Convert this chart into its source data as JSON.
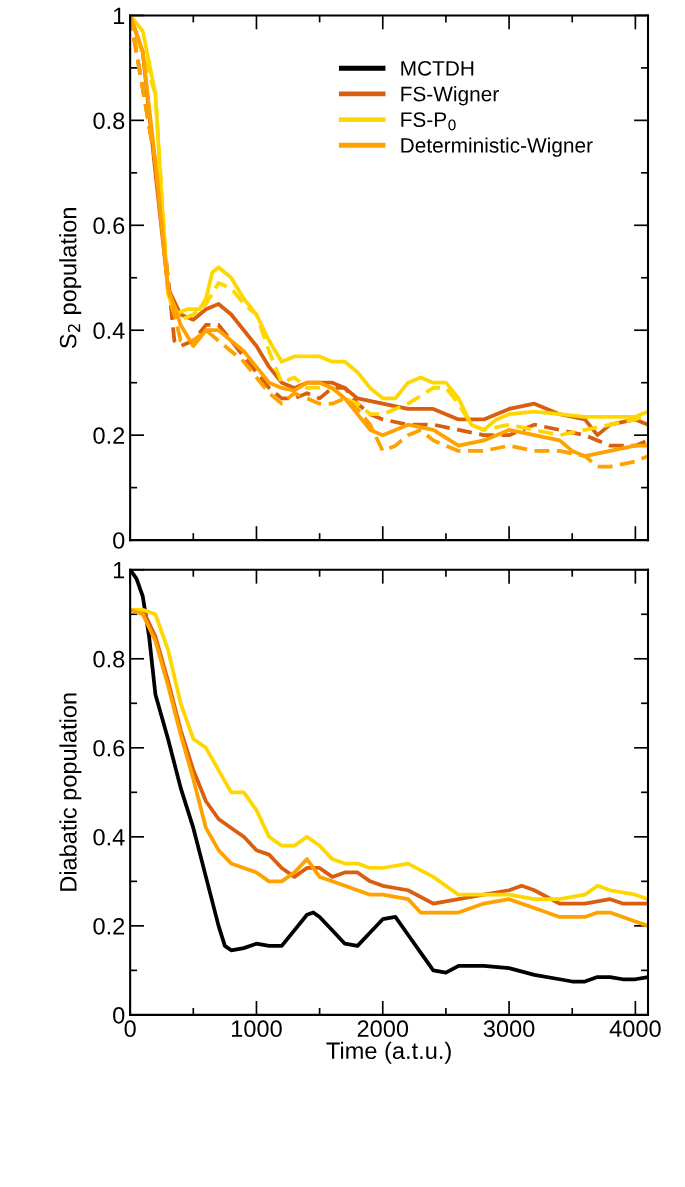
{
  "chart_data": [
    {
      "type": "line",
      "ylabel": "S$_{2}$ population",
      "xlim": [
        0,
        4100
      ],
      "xticks": [
        0,
        1000,
        2000,
        3000,
        4000
      ],
      "ylim": [
        0,
        1
      ],
      "yticks": [
        0,
        0.2,
        0.4,
        0.6,
        0.8,
        1
      ],
      "tick_labels": "y",
      "legend": "top right",
      "grid": false,
      "series": [
        {
          "name": "FS-Wigner",
          "color": "#d95f0e",
          "line_style": "solid",
          "x": [
            0,
            100,
            200,
            300,
            400,
            500,
            600,
            700,
            800,
            900,
            1000,
            1100,
            1200,
            1300,
            1400,
            1500,
            1600,
            1700,
            1800,
            2000,
            2200,
            2400,
            2600,
            2800,
            3000,
            3200,
            3400,
            3600,
            3700,
            3800,
            4000,
            4100
          ],
          "values": [
            1,
            0.93,
            0.7,
            0.48,
            0.43,
            0.42,
            0.44,
            0.45,
            0.43,
            0.4,
            0.37,
            0.33,
            0.3,
            0.29,
            0.3,
            0.3,
            0.3,
            0.29,
            0.27,
            0.26,
            0.25,
            0.25,
            0.23,
            0.23,
            0.25,
            0.26,
            0.24,
            0.23,
            0.2,
            0.22,
            0.23,
            0.22
          ]
        },
        {
          "color": "#d95f0e",
          "line_style": "dashed",
          "x": [
            0,
            200,
            300,
            350,
            400,
            500,
            600,
            700,
            800,
            900,
            1000,
            1100,
            1200,
            1300,
            1400,
            1500,
            1600,
            1700,
            1800,
            1900,
            2000,
            2200,
            2400,
            2600,
            2800,
            3000,
            3200,
            3400,
            3600,
            3700,
            3800,
            4000,
            4100
          ],
          "values": [
            1,
            0.72,
            0.5,
            0.38,
            0.37,
            0.38,
            0.41,
            0.41,
            0.38,
            0.35,
            0.32,
            0.29,
            0.27,
            0.27,
            0.28,
            0.27,
            0.29,
            0.29,
            0.26,
            0.24,
            0.23,
            0.22,
            0.22,
            0.21,
            0.2,
            0.2,
            0.22,
            0.21,
            0.2,
            0.19,
            0.18,
            0.18,
            0.19
          ]
        },
        {
          "name": "FS-P$_{0}$",
          "color": "#ffd700",
          "line_style": "solid",
          "x": [
            0,
            100,
            200,
            250,
            300,
            350,
            450,
            550,
            600,
            650,
            700,
            800,
            900,
            1000,
            1100,
            1200,
            1300,
            1400,
            1500,
            1600,
            1700,
            1800,
            1900,
            2000,
            2100,
            2200,
            2300,
            2400,
            2500,
            2600,
            2700,
            2800,
            2900,
            3000,
            3200,
            3400,
            3600,
            3800,
            4000,
            4100
          ],
          "values": [
            1,
            0.97,
            0.85,
            0.65,
            0.47,
            0.43,
            0.44,
            0.44,
            0.46,
            0.51,
            0.52,
            0.5,
            0.46,
            0.43,
            0.38,
            0.34,
            0.35,
            0.35,
            0.35,
            0.34,
            0.34,
            0.32,
            0.29,
            0.27,
            0.27,
            0.3,
            0.31,
            0.3,
            0.3,
            0.27,
            0.22,
            0.21,
            0.23,
            0.24,
            0.245,
            0.24,
            0.235,
            0.235,
            0.235,
            0.245
          ]
        },
        {
          "color": "#ffd700",
          "line_style": "dashed",
          "x": [
            0,
            200,
            300,
            400,
            500,
            600,
            700,
            800,
            900,
            1000,
            1100,
            1200,
            1300,
            1400,
            1500,
            1600,
            1700,
            1800,
            1900,
            2000,
            2200,
            2400,
            2500,
            2600,
            2700,
            2800,
            3000,
            3200,
            3400,
            3600,
            3800,
            4000,
            4100
          ],
          "values": [
            1,
            0.85,
            0.47,
            0.42,
            0.43,
            0.45,
            0.49,
            0.48,
            0.45,
            0.43,
            0.36,
            0.3,
            0.31,
            0.29,
            0.29,
            0.29,
            0.27,
            0.26,
            0.24,
            0.24,
            0.26,
            0.29,
            0.29,
            0.26,
            0.22,
            0.21,
            0.22,
            0.21,
            0.2,
            0.21,
            0.22,
            0.23,
            0.24
          ]
        },
        {
          "name": "Deterministic-Wigner",
          "color": "#ffa200",
          "line_style": "solid",
          "x": [
            0,
            100,
            200,
            300,
            400,
            500,
            600,
            700,
            800,
            900,
            1000,
            1100,
            1200,
            1300,
            1400,
            1500,
            1600,
            1700,
            1800,
            1900,
            2000,
            2200,
            2400,
            2600,
            2800,
            3000,
            3200,
            3400,
            3500,
            3600,
            3800,
            4000,
            4100
          ],
          "values": [
            1,
            0.93,
            0.72,
            0.48,
            0.41,
            0.37,
            0.4,
            0.4,
            0.38,
            0.36,
            0.33,
            0.3,
            0.29,
            0.285,
            0.3,
            0.3,
            0.29,
            0.27,
            0.24,
            0.21,
            0.2,
            0.22,
            0.21,
            0.18,
            0.19,
            0.21,
            0.2,
            0.19,
            0.17,
            0.16,
            0.17,
            0.18,
            0.18
          ]
        },
        {
          "color": "#ffa200",
          "line_style": "dashed",
          "x": [
            0,
            200,
            300,
            400,
            500,
            600,
            700,
            800,
            900,
            1000,
            1100,
            1200,
            1300,
            1400,
            1500,
            1600,
            1700,
            1800,
            1900,
            2000,
            2100,
            2200,
            2300,
            2400,
            2600,
            2800,
            3000,
            3200,
            3400,
            3600,
            3700,
            3800,
            4000,
            4100
          ],
          "values": [
            1,
            0.72,
            0.48,
            0.38,
            0.38,
            0.4,
            0.38,
            0.36,
            0.34,
            0.31,
            0.28,
            0.26,
            0.28,
            0.27,
            0.26,
            0.26,
            0.27,
            0.25,
            0.22,
            0.17,
            0.18,
            0.2,
            0.21,
            0.19,
            0.17,
            0.17,
            0.18,
            0.17,
            0.17,
            0.16,
            0.14,
            0.14,
            0.15,
            0.16
          ]
        }
      ]
    },
    {
      "type": "line",
      "xlabel": "Time (a.t.u.)",
      "ylabel": "Diabatic population",
      "xlim": [
        0,
        4100
      ],
      "xticks": [
        0,
        1000,
        2000,
        3000,
        4000
      ],
      "ylim": [
        0,
        1
      ],
      "yticks": [
        0,
        0.2,
        0.4,
        0.6,
        0.8,
        1
      ],
      "grid": false,
      "series": [
        {
          "name": "MCTDH",
          "color": "#000000",
          "line_style": "solid",
          "x": [
            0,
            50,
            100,
            150,
            200,
            300,
            400,
            500,
            600,
            700,
            750,
            800,
            900,
            1000,
            1100,
            1200,
            1300,
            1400,
            1450,
            1500,
            1600,
            1700,
            1800,
            1900,
            2000,
            2100,
            2200,
            2300,
            2400,
            2500,
            2600,
            2800,
            3000,
            3200,
            3400,
            3500,
            3600,
            3700,
            3800,
            3900,
            4000,
            4100
          ],
          "values": [
            1,
            0.98,
            0.94,
            0.85,
            0.72,
            0.62,
            0.51,
            0.42,
            0.31,
            0.2,
            0.155,
            0.145,
            0.15,
            0.16,
            0.155,
            0.155,
            0.19,
            0.225,
            0.23,
            0.22,
            0.19,
            0.16,
            0.155,
            0.185,
            0.215,
            0.22,
            0.18,
            0.14,
            0.1,
            0.095,
            0.11,
            0.11,
            0.105,
            0.09,
            0.08,
            0.075,
            0.075,
            0.085,
            0.085,
            0.08,
            0.08,
            0.085
          ]
        },
        {
          "name": "FS-Wigner",
          "color": "#d95f0e",
          "line_style": "solid",
          "x": [
            0,
            100,
            200,
            300,
            400,
            500,
            600,
            700,
            800,
            900,
            1000,
            1100,
            1200,
            1300,
            1400,
            1500,
            1600,
            1700,
            1800,
            1900,
            2000,
            2200,
            2400,
            2600,
            2800,
            3000,
            3100,
            3200,
            3400,
            3600,
            3800,
            3900,
            4000,
            4100
          ],
          "values": [
            0.91,
            0.91,
            0.85,
            0.75,
            0.64,
            0.55,
            0.48,
            0.44,
            0.42,
            0.4,
            0.37,
            0.36,
            0.33,
            0.31,
            0.33,
            0.33,
            0.31,
            0.32,
            0.32,
            0.3,
            0.29,
            0.28,
            0.25,
            0.26,
            0.27,
            0.28,
            0.29,
            0.28,
            0.25,
            0.25,
            0.26,
            0.25,
            0.25,
            0.25
          ]
        },
        {
          "name": "FS-P$_{0}$",
          "color": "#ffd700",
          "line_style": "solid",
          "x": [
            0,
            100,
            200,
            300,
            400,
            500,
            600,
            700,
            800,
            900,
            1000,
            1100,
            1200,
            1300,
            1400,
            1500,
            1600,
            1700,
            1800,
            1900,
            2000,
            2200,
            2400,
            2600,
            2800,
            3000,
            3200,
            3400,
            3600,
            3700,
            3800,
            4000,
            4100
          ],
          "values": [
            0.91,
            0.91,
            0.9,
            0.82,
            0.7,
            0.62,
            0.6,
            0.55,
            0.5,
            0.5,
            0.46,
            0.4,
            0.38,
            0.38,
            0.4,
            0.38,
            0.35,
            0.34,
            0.34,
            0.33,
            0.33,
            0.34,
            0.31,
            0.27,
            0.27,
            0.27,
            0.26,
            0.26,
            0.27,
            0.29,
            0.28,
            0.27,
            0.26
          ]
        },
        {
          "name": "Deterministic-Wigner",
          "color": "#ffa200",
          "line_style": "solid",
          "x": [
            0,
            100,
            200,
            300,
            400,
            500,
            600,
            700,
            800,
            900,
            1000,
            1100,
            1200,
            1300,
            1400,
            1500,
            1600,
            1700,
            1800,
            1900,
            2000,
            2200,
            2300,
            2400,
            2600,
            2800,
            3000,
            3200,
            3400,
            3600,
            3700,
            3800,
            4000,
            4100
          ],
          "values": [
            0.91,
            0.9,
            0.84,
            0.74,
            0.63,
            0.53,
            0.42,
            0.37,
            0.34,
            0.33,
            0.32,
            0.3,
            0.3,
            0.32,
            0.35,
            0.31,
            0.3,
            0.29,
            0.28,
            0.27,
            0.27,
            0.26,
            0.23,
            0.23,
            0.23,
            0.25,
            0.26,
            0.24,
            0.22,
            0.22,
            0.23,
            0.23,
            0.21,
            0.2
          ]
        }
      ]
    }
  ]
}
